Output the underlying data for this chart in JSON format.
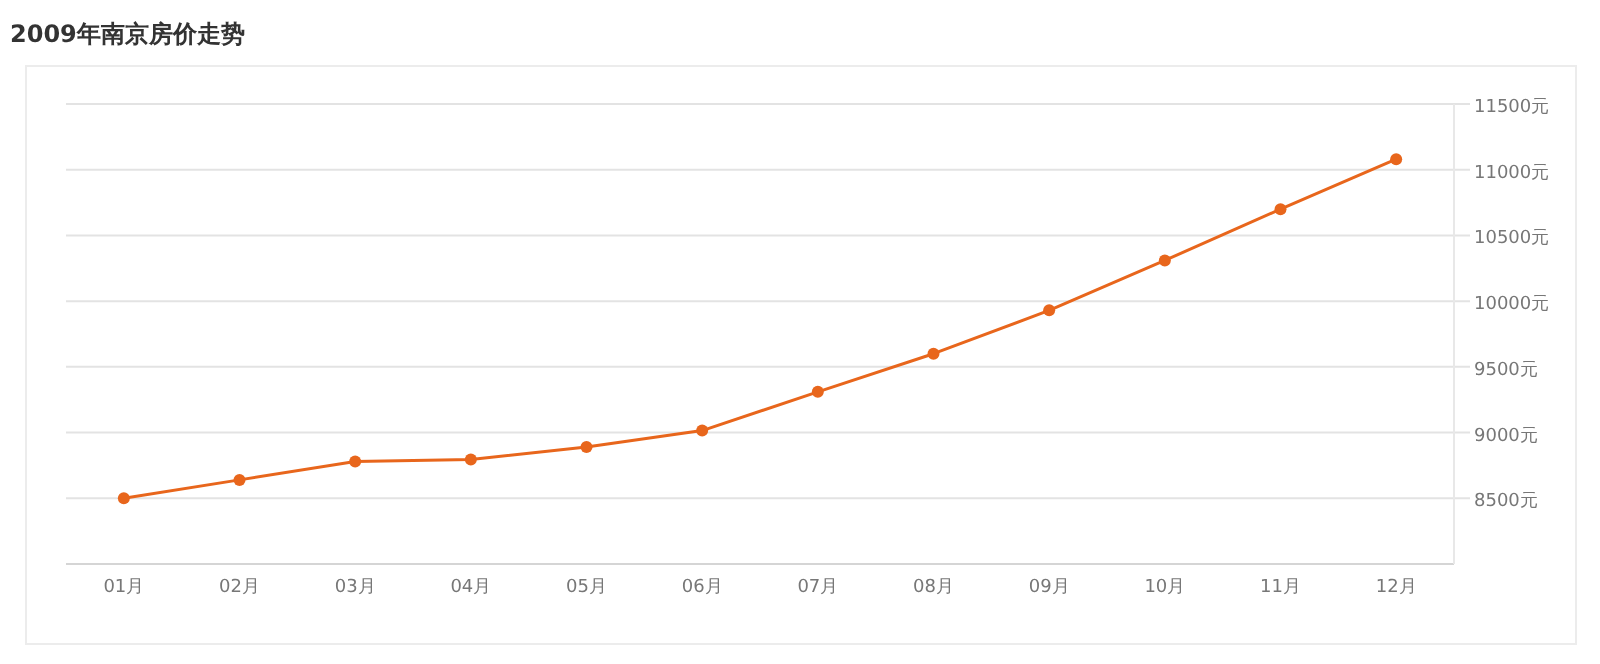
{
  "chart_data": {
    "type": "line",
    "title": "2009年南京房价走势",
    "categories": [
      "01月",
      "02月",
      "03月",
      "04月",
      "05月",
      "06月",
      "07月",
      "08月",
      "09月",
      "10月",
      "11月",
      "12月"
    ],
    "series": [
      {
        "color": "#e8661c",
        "values": [
          8500,
          8640,
          8780,
          8795,
          8890,
          9015,
          9310,
          9600,
          9930,
          10310,
          10700,
          11080
        ]
      }
    ],
    "ylim": [
      8000,
      11500
    ],
    "yticks": [
      {
        "value": 8500,
        "label": "8500元"
      },
      {
        "value": 9000,
        "label": "9000元"
      },
      {
        "value": 9500,
        "label": "9500元"
      },
      {
        "value": 10000,
        "label": "10000元"
      },
      {
        "value": 10500,
        "label": "10500元"
      },
      {
        "value": 11000,
        "label": "11000元"
      },
      {
        "value": 11500,
        "label": "11500元"
      }
    ],
    "grid": "y",
    "marker": "circle"
  }
}
